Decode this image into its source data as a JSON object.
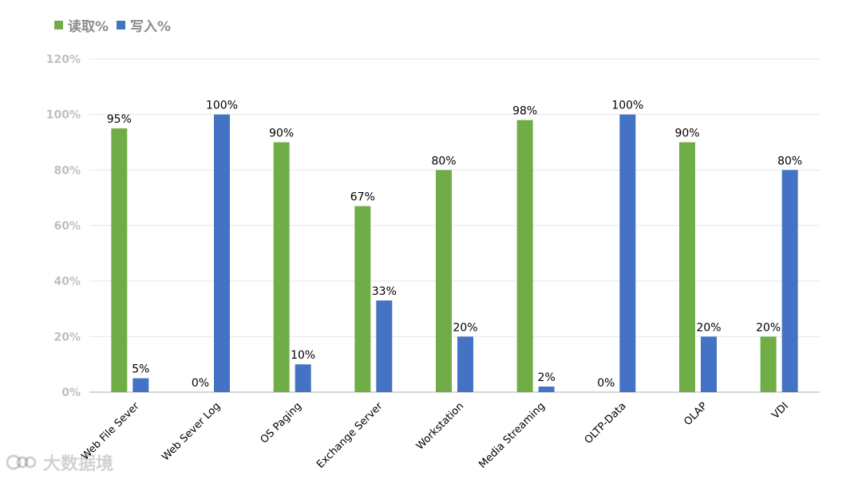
{
  "legend": {
    "read_label": "读取%",
    "write_label": "写入%"
  },
  "colors": {
    "read": "#70AD47",
    "write": "#4472C4",
    "grid": "#e6e6e6",
    "axis_text": "#bfbfbf",
    "label_text": "#000000"
  },
  "watermark": {
    "text": "大数据境"
  },
  "chart_data": {
    "type": "bar",
    "categories": [
      "Web File Sever",
      "Web Sever Log",
      "OS Paging",
      "Exchange Server",
      "Workstation",
      "Media Streaming",
      "OLTP-Data",
      "OLAP",
      "VDI"
    ],
    "series": [
      {
        "name": "读取%",
        "values": [
          95,
          0,
          90,
          67,
          80,
          98,
          0,
          90,
          20
        ]
      },
      {
        "name": "写入%",
        "values": [
          5,
          100,
          10,
          33,
          20,
          2,
          100,
          20,
          80
        ]
      }
    ],
    "data_labels": {
      "read": [
        "95%",
        "0%",
        "90%",
        "67%",
        "80%",
        "98%",
        "0%",
        "90%",
        "20%"
      ],
      "write": [
        "5%",
        "100%",
        "10%",
        "33%",
        "20%",
        "2%",
        "100%",
        "20%",
        "80%"
      ]
    },
    "yticks": [
      "0%",
      "20%",
      "40%",
      "60%",
      "80%",
      "100%",
      "120%"
    ],
    "ylim": [
      0,
      120
    ],
    "grid": true,
    "legend_position": "top-left"
  }
}
